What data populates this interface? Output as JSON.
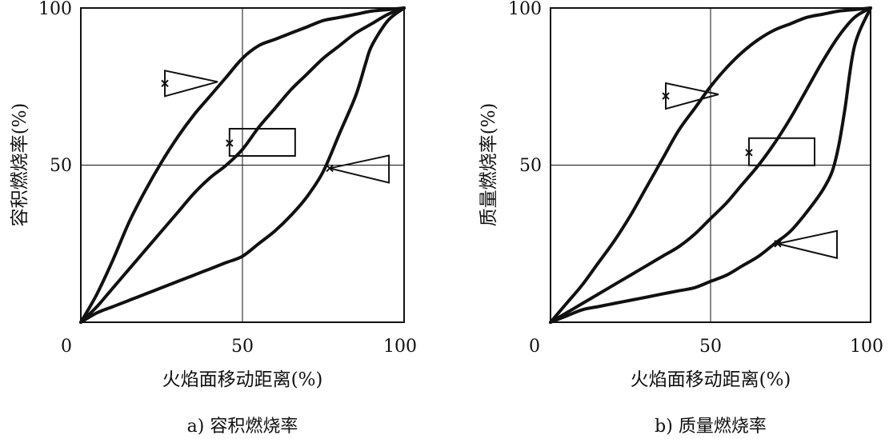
{
  "chart_data": [
    {
      "type": "line",
      "caption": "a) 容积燃烧率",
      "xlabel": "火焰面移动距离(%)",
      "ylabel": "容积燃烧率(%)",
      "xlim": [
        0,
        100
      ],
      "ylim": [
        0,
        100
      ],
      "x_ticks": [
        "0",
        "50",
        "100"
      ],
      "y_ticks": [
        "50",
        "100"
      ],
      "grid": true,
      "series": [
        {
          "shape": "triangle-pointing-right",
          "marker_point": [
            26,
            76
          ],
          "x": [
            0,
            5,
            10,
            15,
            20,
            25,
            30,
            35,
            40,
            45,
            50,
            55,
            60,
            65,
            70,
            75,
            80,
            85,
            90,
            95,
            100
          ],
          "y": [
            0,
            9,
            20,
            32,
            42,
            51,
            59,
            66,
            72,
            78,
            84,
            88,
            90,
            92,
            94,
            96,
            97,
            98,
            99,
            99.5,
            100
          ]
        },
        {
          "shape": "rectangle",
          "marker_point": [
            46,
            57
          ],
          "x": [
            0,
            5,
            10,
            15,
            20,
            25,
            30,
            35,
            40,
            45,
            50,
            55,
            60,
            65,
            70,
            75,
            80,
            85,
            90,
            95,
            100
          ],
          "y": [
            0,
            5,
            11,
            17,
            23,
            29,
            35,
            41,
            46,
            50,
            55,
            62,
            68,
            74,
            79,
            84,
            88,
            92,
            95,
            98,
            100
          ]
        },
        {
          "shape": "triangle-pointing-left",
          "marker_point": [
            77,
            49
          ],
          "x": [
            0,
            5,
            10,
            15,
            20,
            25,
            30,
            35,
            40,
            45,
            50,
            55,
            60,
            65,
            70,
            75,
            80,
            85,
            88,
            90,
            95,
            100
          ],
          "y": [
            0,
            3,
            5,
            7,
            9,
            11,
            13,
            15,
            17,
            19,
            21,
            25,
            29,
            34,
            40,
            48,
            60,
            72,
            82,
            88,
            96,
            100
          ]
        }
      ]
    },
    {
      "type": "line",
      "caption": "b) 质量燃烧率",
      "xlabel": "火焰面移动距离(%)",
      "ylabel": "质量燃烧率(%)",
      "xlim": [
        0,
        100
      ],
      "ylim": [
        0,
        100
      ],
      "x_ticks": [
        "0",
        "50",
        "100"
      ],
      "y_ticks": [
        "50",
        "100"
      ],
      "grid": true,
      "series": [
        {
          "shape": "triangle-pointing-right",
          "marker_point": [
            36,
            72
          ],
          "x": [
            0,
            5,
            10,
            15,
            20,
            25,
            30,
            35,
            40,
            45,
            50,
            55,
            60,
            65,
            70,
            75,
            80,
            85,
            90,
            95,
            100
          ],
          "y": [
            0,
            6,
            12,
            19,
            26,
            34,
            43,
            52,
            61,
            68,
            75,
            81,
            86,
            90,
            93,
            95,
            97,
            98,
            99,
            99.5,
            100
          ]
        },
        {
          "shape": "rectangle",
          "marker_point": [
            62,
            54
          ],
          "x": [
            0,
            5,
            10,
            15,
            20,
            25,
            30,
            35,
            40,
            45,
            50,
            55,
            60,
            65,
            70,
            75,
            80,
            85,
            90,
            95,
            100
          ],
          "y": [
            0,
            3,
            6,
            9,
            12,
            15,
            18,
            21,
            24,
            28,
            33,
            38,
            44,
            50,
            57,
            65,
            74,
            83,
            91,
            97,
            100
          ]
        },
        {
          "shape": "triangle-pointing-left",
          "marker_point": [
            71,
            25
          ],
          "x": [
            0,
            5,
            10,
            15,
            20,
            25,
            30,
            35,
            40,
            45,
            50,
            55,
            60,
            65,
            70,
            75,
            80,
            85,
            88,
            90,
            92,
            95,
            100
          ],
          "y": [
            0,
            2,
            4,
            5,
            6,
            7,
            8,
            9,
            10,
            11,
            13,
            15,
            18,
            21,
            25,
            29,
            35,
            42,
            48,
            56,
            68,
            88,
            100
          ]
        }
      ]
    }
  ]
}
